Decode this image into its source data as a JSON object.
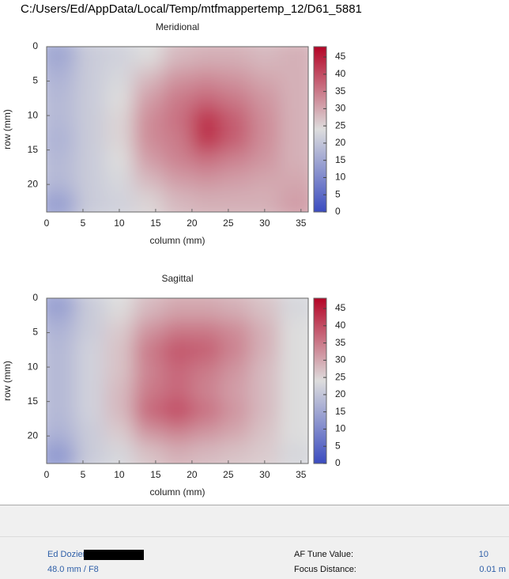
{
  "window_title": "C:/Users/Ed/AppData/Local/Temp/mtfmappertemp_12/D61_5881",
  "chart_data": [
    {
      "type": "heatmap",
      "title": "Meridional",
      "xlabel": "column (mm)",
      "ylabel": "row (mm)",
      "x": [
        2,
        6,
        10,
        14,
        18,
        22,
        26,
        30,
        34
      ],
      "y": [
        1.5,
        4.5,
        7.5,
        10.5,
        13.5,
        16.5,
        19.5,
        22.5
      ],
      "z": [
        [
          15,
          21,
          22,
          24,
          28,
          29,
          29,
          28,
          29
        ],
        [
          17,
          21,
          23,
          28,
          32,
          33,
          32,
          30,
          29
        ],
        [
          18,
          21,
          24,
          31,
          35,
          37,
          35,
          32,
          29
        ],
        [
          18,
          21,
          25,
          33,
          36,
          43,
          38,
          33,
          29
        ],
        [
          17,
          21,
          25,
          33,
          35,
          43,
          38,
          33,
          29
        ],
        [
          18,
          21,
          24,
          31,
          34,
          36,
          34,
          32,
          29
        ],
        [
          18,
          21,
          23,
          28,
          31,
          32,
          31,
          30,
          30
        ],
        [
          14,
          21,
          22,
          25,
          28,
          29,
          29,
          29,
          31
        ]
      ],
      "xlim": [
        0,
        36
      ],
      "ylim": [
        24,
        0
      ],
      "xticks": [
        0,
        5,
        10,
        15,
        20,
        25,
        30,
        35
      ],
      "yticks": [
        0,
        5,
        10,
        15,
        20
      ],
      "clim": [
        0,
        48
      ],
      "cticks": [
        0,
        5,
        10,
        15,
        20,
        25,
        30,
        35,
        40,
        45
      ],
      "colormap": [
        "#3b4cc0",
        "#dddddd",
        "#b40426"
      ]
    },
    {
      "type": "heatmap",
      "title": "Sagittal",
      "xlabel": "column (mm)",
      "ylabel": "row (mm)",
      "x": [
        2,
        6,
        10,
        14,
        18,
        22,
        26,
        30,
        34
      ],
      "y": [
        1.5,
        4.5,
        7.5,
        10.5,
        13.5,
        16.5,
        19.5,
        22.5
      ],
      "z": [
        [
          14,
          21,
          24,
          28,
          30,
          30,
          29,
          27,
          23
        ],
        [
          17,
          21,
          26,
          32,
          35,
          35,
          33,
          29,
          24
        ],
        [
          18,
          22,
          27,
          35,
          39,
          38,
          34,
          29,
          24
        ],
        [
          18,
          22,
          27,
          34,
          37,
          35,
          32,
          28,
          24
        ],
        [
          18,
          22,
          28,
          35,
          37,
          34,
          31,
          28,
          24
        ],
        [
          18,
          22,
          28,
          37,
          40,
          36,
          32,
          28,
          24
        ],
        [
          17,
          21,
          26,
          32,
          34,
          32,
          30,
          27,
          24
        ],
        [
          13,
          21,
          23,
          27,
          29,
          28,
          27,
          26,
          23
        ]
      ],
      "xlim": [
        0,
        36
      ],
      "ylim": [
        24,
        0
      ],
      "xticks": [
        0,
        5,
        10,
        15,
        20,
        25,
        30,
        35
      ],
      "yticks": [
        0,
        5,
        10,
        15,
        20
      ],
      "clim": [
        0,
        48
      ],
      "cticks": [
        0,
        5,
        10,
        15,
        20,
        25,
        30,
        35,
        40,
        45
      ],
      "colormap": [
        "#3b4cc0",
        "#dddddd",
        "#b40426"
      ]
    }
  ],
  "footer": {
    "photographer": "Ed Dozier",
    "lens": "48.0 mm / F8",
    "af_tune_label": "AF Tune Value:",
    "af_tune_value": "10",
    "focus_label": "Focus Distance:",
    "focus_value": "0.01 m"
  }
}
